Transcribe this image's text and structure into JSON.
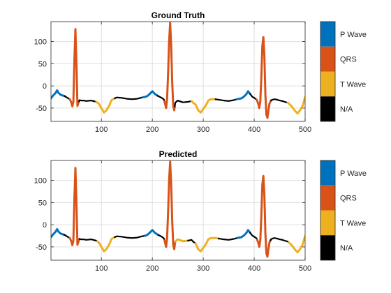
{
  "chart_data": [
    {
      "type": "line",
      "title": "Ground Truth",
      "xlabel": "",
      "ylabel": "",
      "xlim": [
        1,
        500
      ],
      "ylim": [
        -80,
        145
      ],
      "grid": true,
      "x_ticks": [
        100,
        200,
        300,
        400,
        500
      ],
      "y_ticks": [
        -50,
        0,
        50,
        100
      ],
      "legend": {
        "placement": "right",
        "type": "colorbar",
        "entries": [
          {
            "label": "P Wave",
            "color": "#0072BD"
          },
          {
            "label": "QRS",
            "color": "#D95319"
          },
          {
            "label": "T Wave",
            "color": "#EDB120"
          },
          {
            "label": "N/A",
            "color": "#000000"
          }
        ]
      },
      "segments": [
        {
          "label": "P Wave",
          "x_start": 1,
          "x_end": 28
        },
        {
          "label": "N/A",
          "x_start": 28,
          "x_end": 38
        },
        {
          "label": "QRS",
          "x_start": 38,
          "x_end": 56
        },
        {
          "label": "N/A",
          "x_start": 56,
          "x_end": 90
        },
        {
          "label": "T Wave",
          "x_start": 90,
          "x_end": 126
        },
        {
          "label": "N/A",
          "x_start": 126,
          "x_end": 182
        },
        {
          "label": "P Wave",
          "x_start": 182,
          "x_end": 210
        },
        {
          "label": "N/A",
          "x_start": 210,
          "x_end": 224
        },
        {
          "label": "QRS",
          "x_start": 224,
          "x_end": 244
        },
        {
          "label": "N/A",
          "x_start": 244,
          "x_end": 277
        },
        {
          "label": "T Wave",
          "x_start": 277,
          "x_end": 324
        },
        {
          "label": "N/A",
          "x_start": 324,
          "x_end": 366
        },
        {
          "label": "P Wave",
          "x_start": 366,
          "x_end": 392
        },
        {
          "label": "N/A",
          "x_start": 392,
          "x_end": 405
        },
        {
          "label": "QRS",
          "x_start": 405,
          "x_end": 433
        },
        {
          "label": "N/A",
          "x_start": 433,
          "x_end": 466
        },
        {
          "label": "T Wave",
          "x_start": 466,
          "x_end": 500
        }
      ]
    },
    {
      "type": "line",
      "title": "Predicted",
      "xlabel": "",
      "ylabel": "",
      "xlim": [
        1,
        500
      ],
      "ylim": [
        -80,
        145
      ],
      "grid": true,
      "x_ticks": [
        100,
        200,
        300,
        400,
        500
      ],
      "y_ticks": [
        -50,
        0,
        50,
        100
      ],
      "legend": {
        "placement": "right",
        "type": "colorbar",
        "entries": [
          {
            "label": "P Wave",
            "color": "#0072BD"
          },
          {
            "label": "QRS",
            "color": "#D95319"
          },
          {
            "label": "T Wave",
            "color": "#EDB120"
          },
          {
            "label": "N/A",
            "color": "#000000"
          }
        ]
      },
      "segments": [
        {
          "label": "P Wave",
          "x_start": 1,
          "x_end": 27
        },
        {
          "label": "N/A",
          "x_start": 27,
          "x_end": 38
        },
        {
          "label": "QRS",
          "x_start": 38,
          "x_end": 57
        },
        {
          "label": "N/A",
          "x_start": 57,
          "x_end": 92
        },
        {
          "label": "T Wave",
          "x_start": 92,
          "x_end": 126
        },
        {
          "label": "N/A",
          "x_start": 126,
          "x_end": 186
        },
        {
          "label": "P Wave",
          "x_start": 186,
          "x_end": 212
        },
        {
          "label": "N/A",
          "x_start": 212,
          "x_end": 224
        },
        {
          "label": "QRS",
          "x_start": 224,
          "x_end": 245
        },
        {
          "label": "T Wave",
          "x_start": 245,
          "x_end": 270
        },
        {
          "label": "N/A",
          "x_start": 270,
          "x_end": 285
        },
        {
          "label": "T Wave",
          "x_start": 285,
          "x_end": 330
        },
        {
          "label": "N/A",
          "x_start": 330,
          "x_end": 368
        },
        {
          "label": "P Wave",
          "x_start": 368,
          "x_end": 392
        },
        {
          "label": "N/A",
          "x_start": 392,
          "x_end": 406
        },
        {
          "label": "QRS",
          "x_start": 406,
          "x_end": 432
        },
        {
          "label": "N/A",
          "x_start": 432,
          "x_end": 468
        },
        {
          "label": "T Wave",
          "x_start": 468,
          "x_end": 500
        }
      ]
    }
  ],
  "signal": {
    "x": [
      1,
      5,
      10,
      13,
      16,
      20,
      25,
      28,
      32,
      35,
      38,
      41,
      43,
      45,
      47,
      49,
      51,
      53,
      55,
      57,
      60,
      65,
      70,
      80,
      90,
      95,
      100,
      105,
      110,
      115,
      120,
      126,
      130,
      140,
      150,
      160,
      170,
      180,
      185,
      190,
      195,
      200,
      205,
      210,
      215,
      220,
      223,
      225,
      227,
      229,
      231,
      233,
      235,
      237,
      239,
      241,
      243,
      245,
      250,
      255,
      260,
      270,
      277,
      280,
      285,
      290,
      295,
      300,
      305,
      310,
      315,
      320,
      324,
      330,
      340,
      350,
      360,
      366,
      370,
      375,
      380,
      385,
      388,
      392,
      396,
      400,
      405,
      408,
      410,
      412,
      414,
      416,
      418,
      420,
      422,
      424,
      426,
      428,
      430,
      433,
      436,
      440,
      445,
      450,
      455,
      460,
      466,
      470,
      475,
      480,
      485,
      490,
      495,
      500
    ],
    "y": [
      -28,
      -22,
      -16,
      -10,
      -16,
      -20,
      -22,
      -23,
      -26,
      -28,
      -30,
      -38,
      -46,
      -35,
      60,
      128,
      50,
      -45,
      -38,
      -32,
      -33,
      -33,
      -34,
      -33,
      -36,
      -40,
      -50,
      -60,
      -55,
      -45,
      -32,
      -28,
      -26,
      -27,
      -29,
      -30,
      -29,
      -26,
      -25,
      -23,
      -18,
      -12,
      -18,
      -22,
      -25,
      -28,
      -31,
      -40,
      -50,
      -30,
      30,
      100,
      142,
      90,
      10,
      -45,
      -55,
      -38,
      -33,
      -35,
      -37,
      -36,
      -34,
      -38,
      -42,
      -55,
      -60,
      -52,
      -44,
      -33,
      -30,
      -30,
      -30,
      -31,
      -33,
      -34,
      -32,
      -30,
      -29,
      -28,
      -24,
      -18,
      -12,
      -18,
      -24,
      -27,
      -31,
      -40,
      -50,
      -35,
      20,
      90,
      110,
      70,
      -20,
      -65,
      -72,
      -55,
      -40,
      -33,
      -31,
      -30,
      -31,
      -33,
      -34,
      -36,
      -38,
      -42,
      -48,
      -56,
      -62,
      -55,
      -45,
      -25
    ]
  }
}
